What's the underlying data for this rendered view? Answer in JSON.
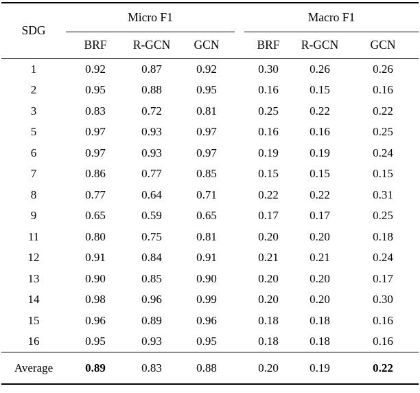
{
  "table": {
    "row_header": "SDG",
    "groups": [
      {
        "label": "Micro F1"
      },
      {
        "label": "Macro F1"
      }
    ],
    "sub_headers": [
      "BRF",
      "R-GCN",
      "GCN",
      "BRF",
      "R-GCN",
      "GCN"
    ],
    "rows": [
      {
        "sdg": "1",
        "values": [
          "0.92",
          "0.87",
          "0.92",
          "0.30",
          "0.26",
          "0.26"
        ]
      },
      {
        "sdg": "2",
        "values": [
          "0.95",
          "0.88",
          "0.95",
          "0.16",
          "0.15",
          "0.16"
        ]
      },
      {
        "sdg": "3",
        "values": [
          "0.83",
          "0.72",
          "0.81",
          "0.25",
          "0.22",
          "0.22"
        ]
      },
      {
        "sdg": "5",
        "values": [
          "0.97",
          "0.93",
          "0.97",
          "0.16",
          "0.16",
          "0.25"
        ]
      },
      {
        "sdg": "6",
        "values": [
          "0.97",
          "0.93",
          "0.97",
          "0.19",
          "0.19",
          "0.24"
        ]
      },
      {
        "sdg": "7",
        "values": [
          "0.86",
          "0.77",
          "0.85",
          "0.15",
          "0.15",
          "0.15"
        ]
      },
      {
        "sdg": "8",
        "values": [
          "0.77",
          "0.64",
          "0.71",
          "0.22",
          "0.22",
          "0.31"
        ]
      },
      {
        "sdg": "9",
        "values": [
          "0.65",
          "0.59",
          "0.65",
          "0.17",
          "0.17",
          "0.25"
        ]
      },
      {
        "sdg": "11",
        "values": [
          "0.80",
          "0.75",
          "0.81",
          "0.20",
          "0.20",
          "0.18"
        ]
      },
      {
        "sdg": "12",
        "values": [
          "0.91",
          "0.84",
          "0.91",
          "0.21",
          "0.21",
          "0.24"
        ]
      },
      {
        "sdg": "13",
        "values": [
          "0.90",
          "0.85",
          "0.90",
          "0.20",
          "0.20",
          "0.17"
        ]
      },
      {
        "sdg": "14",
        "values": [
          "0.98",
          "0.96",
          "0.99",
          "0.20",
          "0.20",
          "0.30"
        ]
      },
      {
        "sdg": "15",
        "values": [
          "0.96",
          "0.89",
          "0.96",
          "0.18",
          "0.18",
          "0.16"
        ]
      },
      {
        "sdg": "16",
        "values": [
          "0.95",
          "0.93",
          "0.95",
          "0.18",
          "0.18",
          "0.16"
        ]
      }
    ],
    "average_row": {
      "label": "Average",
      "values": [
        "0.89",
        "0.83",
        "0.88",
        "0.20",
        "0.19",
        "0.22"
      ],
      "bold_value_indices": [
        0,
        5
      ]
    }
  }
}
